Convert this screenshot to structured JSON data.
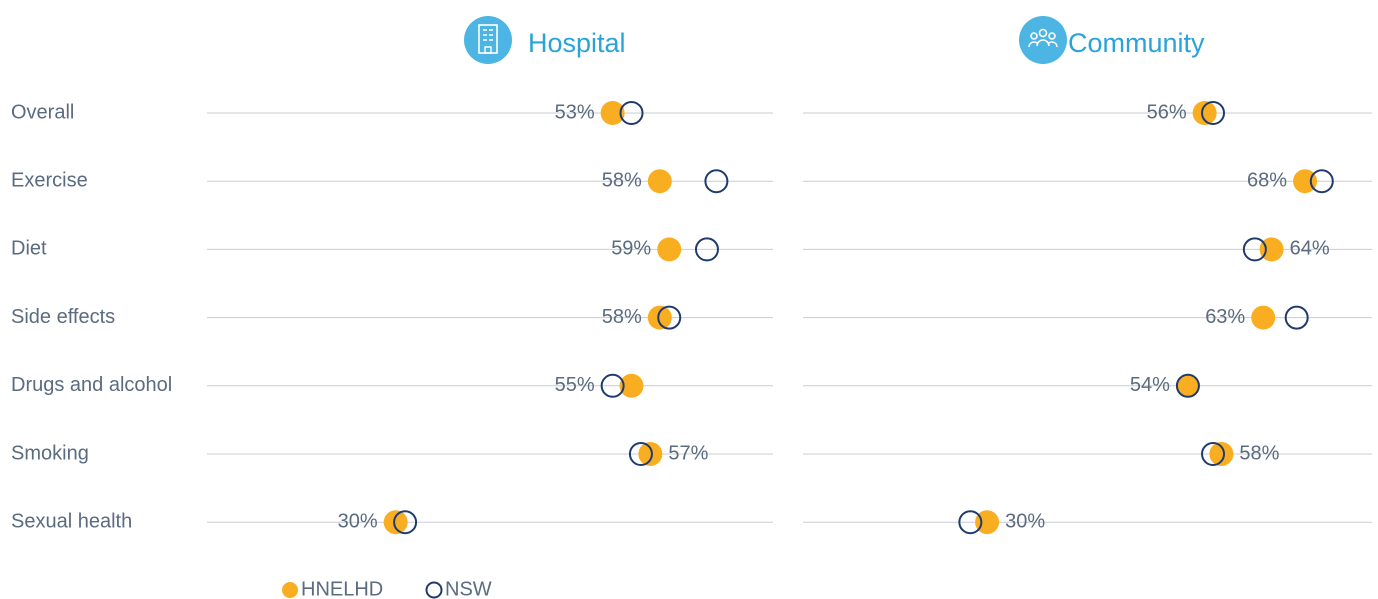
{
  "chart_data": {
    "type": "dot",
    "categories": [
      "Overall",
      "Exercise",
      "Diet",
      "Side effects",
      "Drugs and alcohol",
      "Smoking",
      "Sexual health"
    ],
    "panels": [
      {
        "title": "Hospital",
        "xlim": [
          10,
          70
        ],
        "series": [
          {
            "name": "HNELHD",
            "color": "#f9ae22",
            "values": [
              53,
              58,
              59,
              58,
              55,
              57,
              30
            ],
            "value_labels": [
              "53%",
              "58%",
              "59%",
              "58%",
              "55%",
              "57%",
              "30%"
            ]
          },
          {
            "name": "NSW",
            "color": "#1f3a6e",
            "values": [
              55,
              64,
              63,
              59,
              53,
              56,
              31
            ]
          }
        ]
      },
      {
        "title": "Community",
        "xlim": [
          8,
          76
        ],
        "series": [
          {
            "name": "HNELHD",
            "color": "#f9ae22",
            "values": [
              56,
              68,
              64,
              63,
              54,
              58,
              30
            ],
            "value_labels": [
              "56%",
              "68%",
              "64%",
              "63%",
              "54%",
              "58%",
              "30%"
            ]
          },
          {
            "name": "NSW",
            "color": "#1f3a6e",
            "values": [
              57,
              70,
              62,
              67,
              54,
              57,
              28
            ]
          }
        ]
      }
    ]
  }
}
